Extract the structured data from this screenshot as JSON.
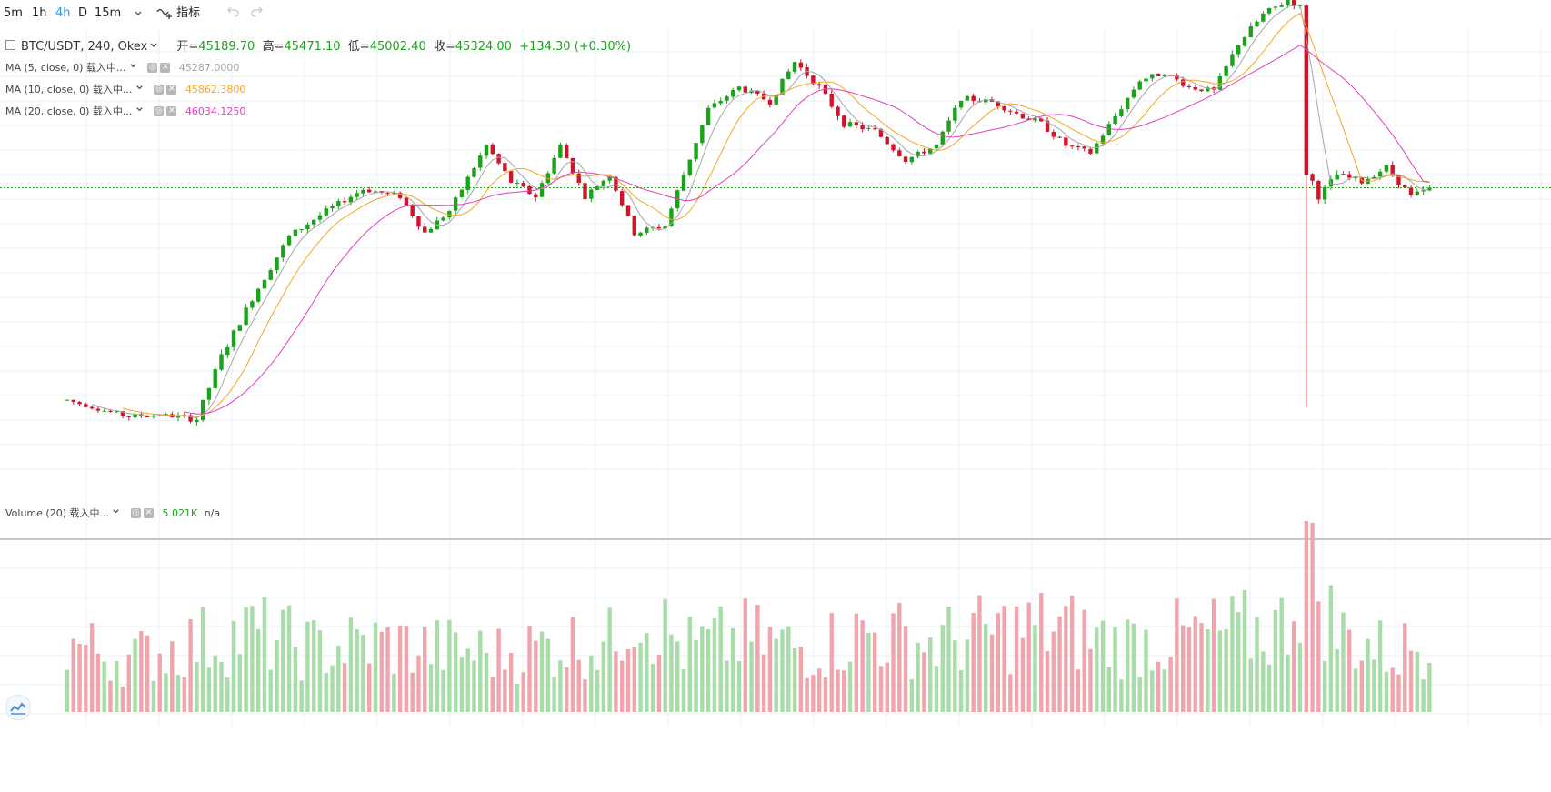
{
  "toolbar": {
    "intervals": [
      {
        "label": "5m",
        "active": false
      },
      {
        "label": "1h",
        "active": false
      },
      {
        "label": "4h",
        "active": true
      },
      {
        "label": "D",
        "active": false
      },
      {
        "label": "15m",
        "active": false
      }
    ],
    "dropdown_icon": "chevron-down-icon",
    "indicators_label": "指标",
    "indicators_icon": "indicator-plus-icon",
    "undo_icon": "undo-icon",
    "redo_icon": "redo-icon"
  },
  "legend": {
    "symbol": "BTC/USDT, 240, Okex",
    "open_label": "开=",
    "open": "45189.70",
    "high_label": "高=",
    "high": "45471.10",
    "low_label": "低=",
    "low": "45002.40",
    "close_label": "收=",
    "close": "45324.00",
    "change": "+134.30 (+0.30%)"
  },
  "indicators": [
    {
      "label": "MA (5, close, 0) 载入中...",
      "value": "45287.0000",
      "color": "#a6a6a6"
    },
    {
      "label": "MA (10, close, 0) 载入中...",
      "value": "45862.3800",
      "color": "#f5a623"
    },
    {
      "label": "MA (20, close, 0) 载入中...",
      "value": "46034.1250",
      "color": "#e040c0"
    }
  ],
  "volume_legend": {
    "label": "Volume (20) 载入中...",
    "value": "5.021K",
    "na": "n/a"
  },
  "colors": {
    "up": "#1aa31a",
    "down": "#d2142b",
    "vol_up": "#a8dca8",
    "vol_down": "#f0a4ac",
    "grid": "#e8f0f4",
    "current_line": "#1aa31a"
  },
  "chart_data": {
    "type": "candlestick",
    "title": "BTC/USDT, 240, Okex",
    "last_close": 45324.0,
    "anchors": [
      [
        0,
        1.0,
        0.4
      ],
      [
        5,
        0.975,
        0.3
      ],
      [
        10,
        0.955,
        0.5
      ],
      [
        15,
        0.96,
        0.35
      ],
      [
        21,
        0.948,
        0.7
      ],
      [
        25,
        1.12,
        0.7
      ],
      [
        30,
        1.28,
        0.6
      ],
      [
        36,
        1.45,
        0.6
      ],
      [
        42,
        1.52,
        0.5
      ],
      [
        48,
        1.58,
        0.5
      ],
      [
        54,
        1.56,
        0.5
      ],
      [
        58,
        1.46,
        0.6
      ],
      [
        62,
        1.52,
        0.5
      ],
      [
        68,
        1.7,
        0.6
      ],
      [
        72,
        1.6,
        0.6
      ],
      [
        76,
        1.56,
        0.6
      ],
      [
        80,
        1.7,
        0.6
      ],
      [
        84,
        1.56,
        0.5
      ],
      [
        88,
        1.62,
        0.5
      ],
      [
        92,
        1.46,
        0.6
      ],
      [
        97,
        1.48,
        0.6
      ],
      [
        100,
        1.62,
        0.6
      ],
      [
        104,
        1.8,
        0.5
      ],
      [
        109,
        1.86,
        0.5
      ],
      [
        114,
        1.82,
        0.5
      ],
      [
        118,
        1.93,
        0.6
      ],
      [
        122,
        1.86,
        0.6
      ],
      [
        126,
        1.76,
        0.6
      ],
      [
        131,
        1.74,
        0.5
      ],
      [
        136,
        1.66,
        0.5
      ],
      [
        141,
        1.7,
        0.5
      ],
      [
        145,
        1.83,
        0.5
      ],
      [
        150,
        1.82,
        0.5
      ],
      [
        155,
        1.78,
        0.5
      ],
      [
        158,
        1.76,
        0.6
      ],
      [
        162,
        1.7,
        0.5
      ],
      [
        166,
        1.68,
        0.5
      ],
      [
        170,
        1.78,
        0.6
      ],
      [
        174,
        1.88,
        0.5
      ],
      [
        178,
        1.9,
        0.5
      ],
      [
        182,
        1.86,
        0.5
      ],
      [
        186,
        1.85,
        0.5
      ],
      [
        190,
        1.98,
        0.6
      ],
      [
        194,
        2.06,
        0.6
      ],
      [
        198,
        2.1,
        0.5
      ],
      [
        200,
        2.08,
        0.5
      ],
      [
        201,
        1.64,
        1.2
      ],
      [
        203,
        1.56,
        0.6
      ],
      [
        206,
        1.62,
        0.6
      ],
      [
        210,
        1.6,
        0.5
      ],
      [
        214,
        1.64,
        0.5
      ],
      [
        218,
        1.56,
        0.6
      ],
      [
        221,
        1.58,
        0.5
      ]
    ],
    "vol_anchors": [
      [
        0,
        1.3
      ],
      [
        10,
        1.0
      ],
      [
        20,
        1.3
      ],
      [
        30,
        1.5
      ],
      [
        40,
        1.2
      ],
      [
        50,
        1.3
      ],
      [
        60,
        1.2
      ],
      [
        70,
        1.1
      ],
      [
        80,
        1.3
      ],
      [
        88,
        1.3
      ],
      [
        92,
        2.1
      ],
      [
        100,
        1.2
      ],
      [
        110,
        1.4
      ],
      [
        120,
        1.2
      ],
      [
        130,
        1.5
      ],
      [
        140,
        1.3
      ],
      [
        150,
        1.5
      ],
      [
        160,
        1.6
      ],
      [
        170,
        1.3
      ],
      [
        180,
        1.4
      ],
      [
        190,
        1.5
      ],
      [
        197,
        1.6
      ],
      [
        201,
        2.8
      ],
      [
        206,
        1.5
      ],
      [
        215,
        1.1
      ],
      [
        221,
        1.4
      ]
    ],
    "vol_unit": "K",
    "last_volume": 5.021
  }
}
